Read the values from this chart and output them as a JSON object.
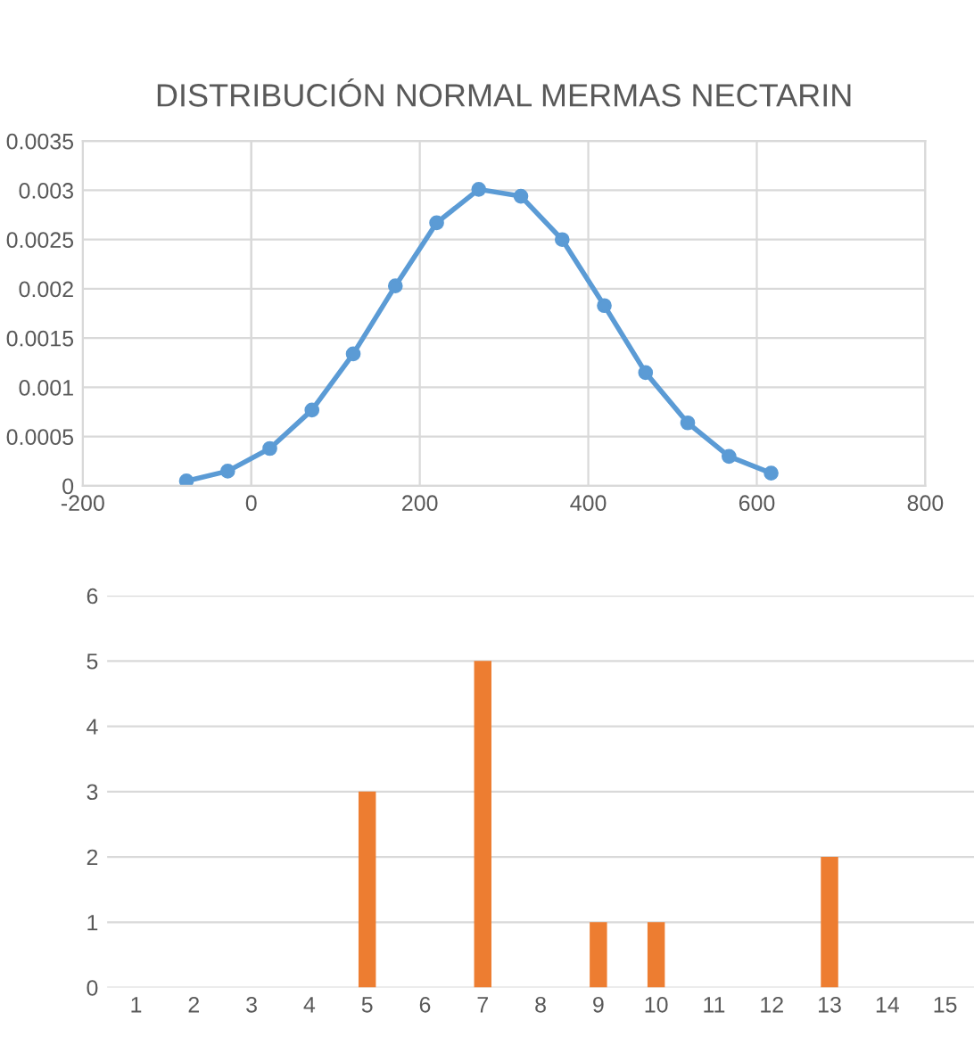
{
  "chart_data": [
    {
      "type": "line",
      "title": "DISTRIBUCIÓN NORMAL MERMAS NECTARIN",
      "x": [
        -77,
        -28,
        22,
        72,
        121,
        171,
        220,
        270,
        320,
        369,
        419,
        468,
        518,
        567,
        617
      ],
      "series": [
        {
          "color": "#5b9bd5",
          "values": [
            5e-05,
            0.00015,
            0.00038,
            0.00077,
            0.00134,
            0.00203,
            0.00267,
            0.00301,
            0.00294,
            0.0025,
            0.00183,
            0.00115,
            0.00064,
            0.0003,
            0.00013
          ]
        }
      ],
      "xlim": [
        -200,
        800
      ],
      "xticks": [
        -200,
        0,
        200,
        400,
        600,
        800
      ],
      "ylim": [
        0,
        0.0035
      ],
      "yticks": [
        0,
        0.0005,
        0.001,
        0.0015,
        0.002,
        0.0025,
        0.003,
        0.0035
      ],
      "grid": true,
      "marker": "circle",
      "line_style": "solid"
    },
    {
      "type": "bar",
      "categories": [
        "1",
        "2",
        "3",
        "4",
        "5",
        "6",
        "7",
        "8",
        "9",
        "10",
        "11",
        "12",
        "13",
        "14",
        "15"
      ],
      "series": [
        {
          "color": "#ed7d31",
          "values": [
            0,
            0,
            0,
            0,
            3,
            0,
            5,
            0,
            1,
            1,
            0,
            0,
            2,
            0,
            0
          ]
        }
      ],
      "ylim": [
        0,
        6
      ],
      "yticks": [
        0,
        1,
        2,
        3,
        4,
        5,
        6
      ],
      "grid": "y"
    }
  ]
}
